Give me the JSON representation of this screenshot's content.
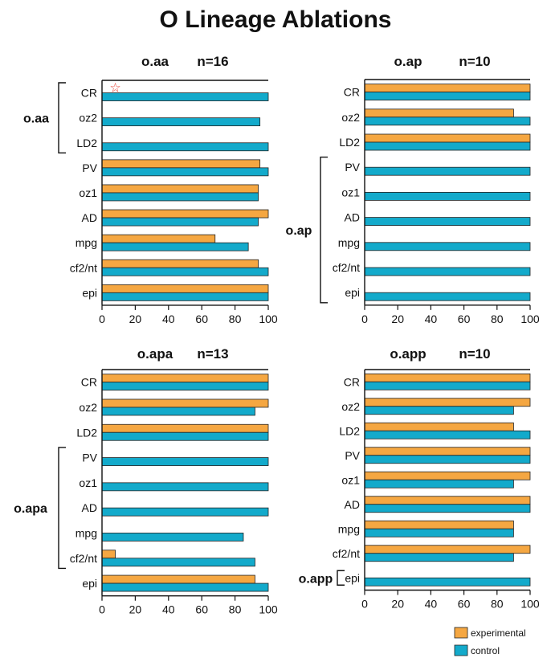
{
  "figure": {
    "title": "O Lineage Ablations"
  },
  "legend": [
    {
      "label": "experimental",
      "color": "#F5A742"
    },
    {
      "label": "control",
      "color": "#13AACB"
    }
  ],
  "colors": {
    "experimental": "#F5A742",
    "control": "#13AACB",
    "star": "#E8392B"
  },
  "chart_data": [
    {
      "type": "bar",
      "orientation": "horizontal",
      "title": "o.aa",
      "n_label": "n=16",
      "categories": [
        "CR",
        "oz2",
        "LD2",
        "PV",
        "oz1",
        "AD",
        "mpg",
        "cf2/nt",
        "epi"
      ],
      "series": [
        {
          "name": "experimental",
          "values": [
            null,
            null,
            null,
            95,
            94,
            100,
            68,
            94,
            100
          ]
        },
        {
          "name": "control",
          "values": [
            100,
            95,
            100,
            100,
            94,
            94,
            88,
            100,
            100
          ]
        }
      ],
      "xlim": [
        0,
        100
      ],
      "xticks": [
        0,
        20,
        40,
        60,
        80,
        100
      ],
      "bracket": {
        "label": "o.aa",
        "categories": [
          "CR",
          "oz2",
          "LD2"
        ]
      },
      "annotation": {
        "symbol": "☆",
        "category": "CR"
      }
    },
    {
      "type": "bar",
      "orientation": "horizontal",
      "title": "o.ap",
      "n_label": "n=10",
      "categories": [
        "CR",
        "oz2",
        "LD2",
        "PV",
        "oz1",
        "AD",
        "mpg",
        "cf2/nt",
        "epi"
      ],
      "series": [
        {
          "name": "experimental",
          "values": [
            100,
            90,
            100,
            null,
            null,
            null,
            null,
            null,
            null
          ]
        },
        {
          "name": "control",
          "values": [
            100,
            100,
            100,
            100,
            100,
            100,
            100,
            100,
            100
          ]
        }
      ],
      "xlim": [
        0,
        100
      ],
      "xticks": [
        0,
        20,
        40,
        60,
        80,
        100
      ],
      "bracket": {
        "label": "o.ap",
        "categories": [
          "PV",
          "oz1",
          "AD",
          "mpg",
          "cf2/nt",
          "epi"
        ]
      }
    },
    {
      "type": "bar",
      "orientation": "horizontal",
      "title": "o.apa",
      "n_label": "n=13",
      "categories": [
        "CR",
        "oz2",
        "LD2",
        "PV",
        "oz1",
        "AD",
        "mpg",
        "cf2/nt",
        "epi"
      ],
      "series": [
        {
          "name": "experimental",
          "values": [
            100,
            100,
            100,
            null,
            null,
            null,
            null,
            8,
            92
          ]
        },
        {
          "name": "control",
          "values": [
            100,
            92,
            100,
            100,
            100,
            100,
            85,
            92,
            100
          ]
        }
      ],
      "xlim": [
        0,
        100
      ],
      "xticks": [
        0,
        20,
        40,
        60,
        80,
        100
      ],
      "bracket": {
        "label": "o.apa",
        "categories": [
          "PV",
          "oz1",
          "AD",
          "mpg",
          "cf2/nt"
        ]
      }
    },
    {
      "type": "bar",
      "orientation": "horizontal",
      "title": "o.app",
      "n_label": "n=10",
      "categories": [
        "CR",
        "oz2",
        "LD2",
        "PV",
        "oz1",
        "AD",
        "mpg",
        "cf2/nt",
        "epi"
      ],
      "series": [
        {
          "name": "experimental",
          "values": [
            100,
            100,
            90,
            100,
            100,
            100,
            90,
            100,
            null
          ]
        },
        {
          "name": "control",
          "values": [
            100,
            90,
            100,
            100,
            90,
            100,
            90,
            90,
            100
          ]
        }
      ],
      "xlim": [
        0,
        100
      ],
      "xticks": [
        0,
        20,
        40,
        60,
        80,
        100
      ],
      "bracket": {
        "label": "o.app",
        "categories": [
          "epi"
        ]
      }
    }
  ]
}
